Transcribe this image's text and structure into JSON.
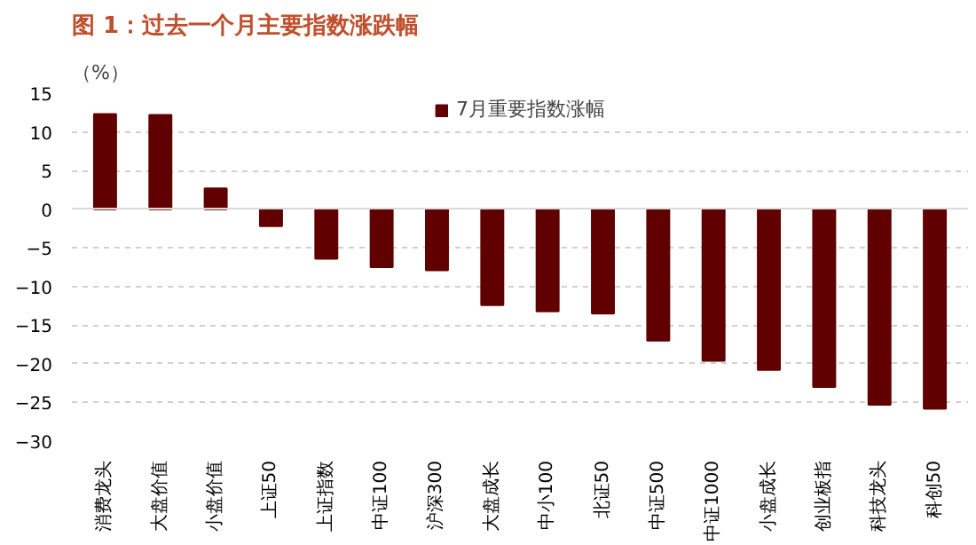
{
  "chart_data": {
    "type": "bar",
    "title": "图 1：过去一个月主要指数涨跌幅",
    "ylabel": "（%）",
    "categories": [
      "消费龙头",
      "大盘价值",
      "小盘价值",
      "上证50",
      "上证指数",
      "中证100",
      "沪深300",
      "大盘成长",
      "中小100",
      "北证50",
      "中证500",
      "中证1000",
      "小盘成长",
      "创业板指",
      "科技龙头",
      "科创50"
    ],
    "series": [
      {
        "name": "7月重要指数涨幅",
        "color": "#600000",
        "values": [
          12.3,
          12.2,
          2.7,
          -2.2,
          -6.4,
          -7.5,
          -7.9,
          -12.4,
          -13.2,
          -13.5,
          -17.0,
          -19.6,
          -20.8,
          -23.0,
          -25.3,
          -25.8
        ]
      }
    ],
    "ylim": [
      -30,
      15
    ],
    "yticks": [
      -30,
      -25,
      -20,
      -15,
      -10,
      -5,
      0,
      5,
      10,
      15
    ],
    "grid": "y",
    "legend": "top"
  }
}
